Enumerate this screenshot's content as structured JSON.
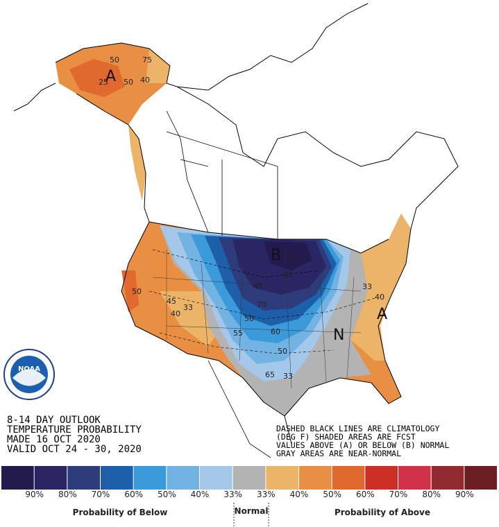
{
  "header": {
    "lines": [
      "8-14 DAY OUTLOOK",
      "TEMPERATURE PROBABILITY",
      "MADE  16 OCT 2020",
      "VALID  OCT 24 - 30, 2020"
    ]
  },
  "notes": [
    "DASHED BLACK LINES ARE CLIMATOLOGY",
    "(DEG F) SHADED AREAS ARE FCST",
    "VALUES ABOVE (A) OR BELOW (B) NORMAL",
    "GRAY AREAS ARE NEAR-NORMAL"
  ],
  "map_labels": {
    "regions": [
      "A",
      "B",
      "N",
      "A"
    ],
    "contours": [
      "50",
      "75",
      "50",
      "40",
      "25",
      "50",
      "90",
      "80",
      "45",
      "70",
      "50",
      "60",
      "55",
      "50",
      "65",
      "33",
      "40",
      "33",
      "45",
      "33",
      "40"
    ]
  },
  "logo": "NOAA",
  "legend": {
    "colors": [
      "#231b4e",
      "#2a2563",
      "#2e3c7c",
      "#1d5fa9",
      "#3b9ad9",
      "#72b3e4",
      "#a5c8ea",
      "#b3b3b3",
      "#ecb468",
      "#e88f44",
      "#e0692f",
      "#cc2f26",
      "#d0324a",
      "#922a31",
      "#6b1f23"
    ],
    "labels": [
      "90%",
      "80%",
      "70%",
      "60%",
      "50%",
      "40%",
      "33%",
      "33%",
      "40%",
      "50%",
      "60%",
      "70%",
      "80%",
      "90%"
    ],
    "below": "Probability of Below",
    "normal": "Normal",
    "above": "Probability of Above"
  }
}
